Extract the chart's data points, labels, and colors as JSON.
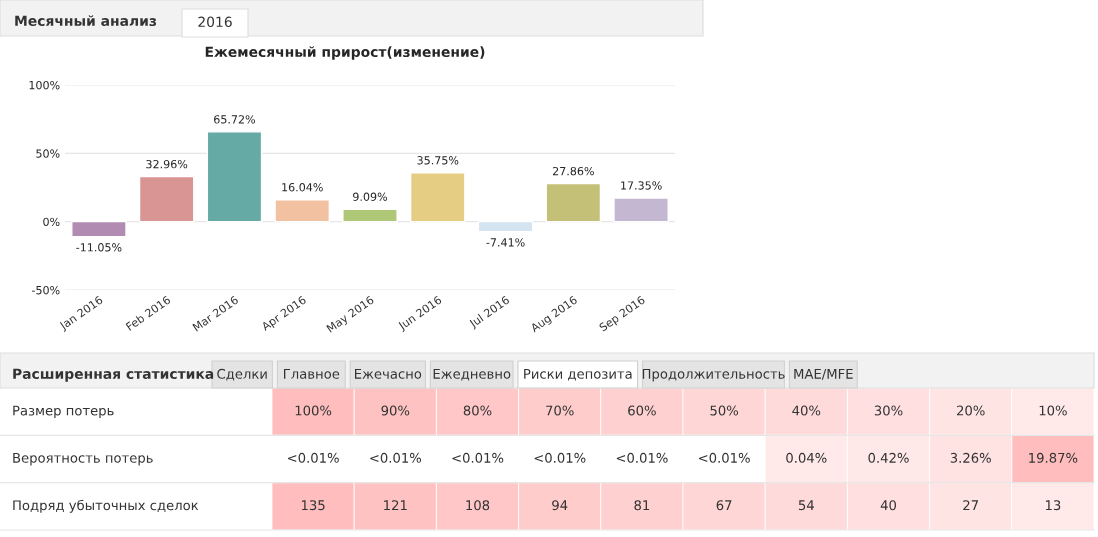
{
  "chart_data": [
    {
      "type": "bar",
      "title": "Ежемесячный прирост(изменение)",
      "annotations": [
        "Месячный анализ",
        "2016"
      ],
      "categories": [
        "Jan 2016",
        "Feb 2016",
        "Mar 2016",
        "Apr 2016",
        "May 2016",
        "Jun 2016",
        "Jul 2016",
        "Aug 2016",
        "Sep 2016"
      ],
      "values": [
        -11.05,
        32.96,
        65.72,
        16.04,
        9.09,
        35.75,
        -7.41,
        27.86,
        17.35
      ],
      "value_labels": [
        "-11.05%",
        "32.96%",
        "65.72%",
        "16.04%",
        "9.09%",
        "35.75%",
        "-7.41%",
        "27.86%",
        "17.35%"
      ],
      "colors": [
        "#b784b8",
        "#e58a87",
        "#5bb5b0",
        "#ffbe94",
        "#b4d56a",
        "#f5d574",
        "#cfe4f6",
        "#d1cc6a",
        "#c4b3d6"
      ],
      "ylim": [
        -50,
        100
      ],
      "yticks": [
        {
          "value": -50,
          "label": "-50%"
        },
        {
          "value": 0,
          "label": "0%"
        },
        {
          "value": 50,
          "label": "50%"
        },
        {
          "value": 100,
          "label": "100%"
        }
      ],
      "grid": "y"
    },
    {
      "type": "heatmap",
      "title": "Расширенная статистика",
      "annotations": [
        "Сделки",
        "Главное",
        "Ежечасно",
        "Ежедневно",
        "Риски депозита",
        "Продолжительность",
        "MAE/MFE"
      ],
      "categories": [
        null,
        null,
        null,
        null,
        null,
        null,
        null,
        null,
        null,
        null
      ],
      "y_categories": [
        "Размер потерь",
        "Вероятность потерь",
        "Подряд убыточных сделок"
      ],
      "cells": [
        [
          100,
          90,
          80,
          70,
          60,
          50,
          40,
          30,
          20,
          10
        ],
        [
          null,
          null,
          null,
          null,
          null,
          null,
          0.04,
          0.42,
          3.26,
          19.87
        ],
        [
          135,
          121,
          108,
          94,
          81,
          67,
          54,
          40,
          27,
          13
        ]
      ],
      "cell_labels": [
        [
          "100%",
          "90%",
          "80%",
          "70%",
          "60%",
          "50%",
          "40%",
          "30%",
          "20%",
          "10%"
        ],
        [
          "<0.01%",
          "<0.01%",
          "<0.01%",
          "<0.01%",
          "<0.01%",
          "<0.01%",
          "0.04%",
          "0.42%",
          "3.26%",
          "19.87%"
        ],
        [
          "135",
          "121",
          "108",
          "94",
          "81",
          "67",
          "54",
          "40",
          "27",
          "13"
        ]
      ]
    }
  ]
}
